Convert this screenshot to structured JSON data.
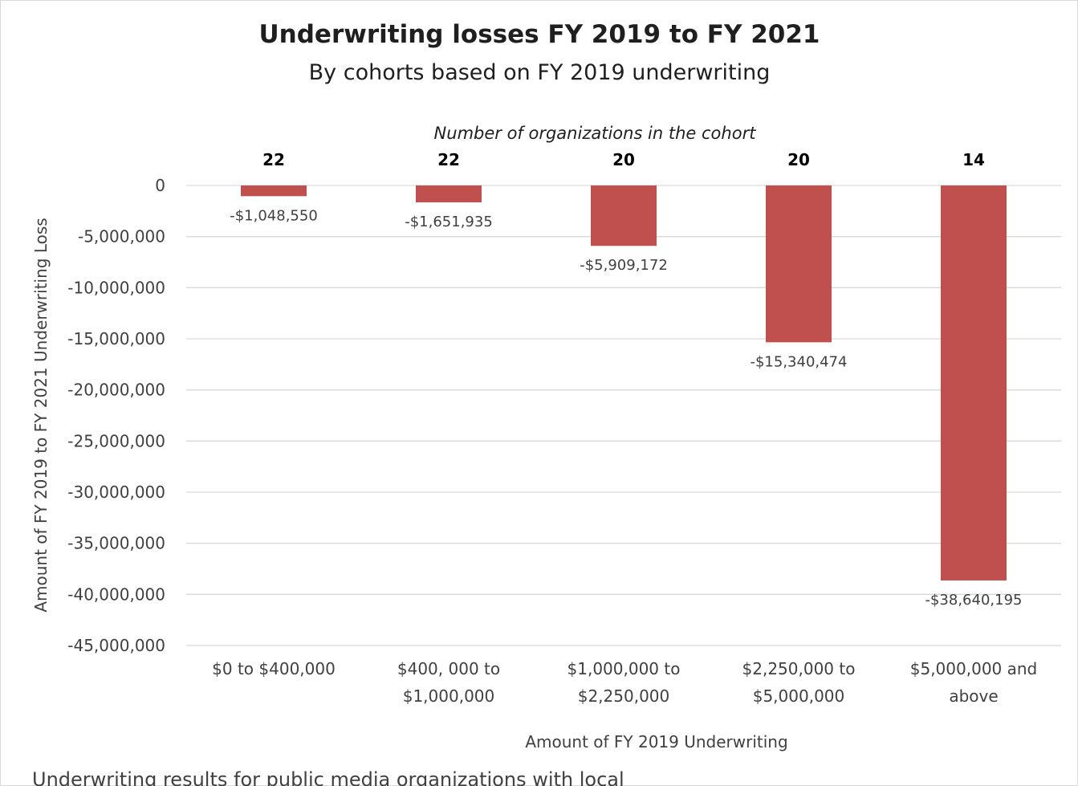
{
  "chart_data": {
    "type": "bar",
    "title": "Underwriting losses FY 2019 to FY 2021",
    "subtitle": "By cohorts based on FY 2019 underwriting",
    "annotation_title": "Number of organizations in the cohort",
    "counts": [
      "22",
      "22",
      "20",
      "20",
      "14"
    ],
    "categories": [
      [
        "$0 to $400,000"
      ],
      [
        "$400, 000 to",
        "$1,000,000"
      ],
      [
        "$1,000,000 to",
        "$2,250,000"
      ],
      [
        "$2,250,000 to",
        "$5,000,000"
      ],
      [
        "$5,000,000 and",
        "above"
      ]
    ],
    "values": [
      -1048550,
      -1651935,
      -5909172,
      -15340474,
      -38640195
    ],
    "data_labels": [
      "-$1,048,550",
      "-$1,651,935",
      "-$5,909,172",
      "-$15,340,474",
      "-$38,640,195"
    ],
    "xlabel": "Amount of FY 2019 Underwriting",
    "ylabel": "Amount of FY 2019 to FY 2021 Underwriting Loss",
    "ylim": [
      -45000000,
      0
    ],
    "yticks": [
      0,
      -5000000,
      -10000000,
      -15000000,
      -20000000,
      -25000000,
      -30000000,
      -35000000,
      -40000000,
      -45000000
    ],
    "ytick_labels": [
      "0",
      "-5,000,000",
      "-10,000,000",
      "-15,000,000",
      "-20,000,000",
      "-25,000,000",
      "-30,000,000",
      "-35,000,000",
      "-40,000,000",
      "-45,000,000"
    ],
    "grid": true,
    "bar_color": "#c0504d"
  },
  "footer_text": "Underwriting results for public media organizations with local"
}
